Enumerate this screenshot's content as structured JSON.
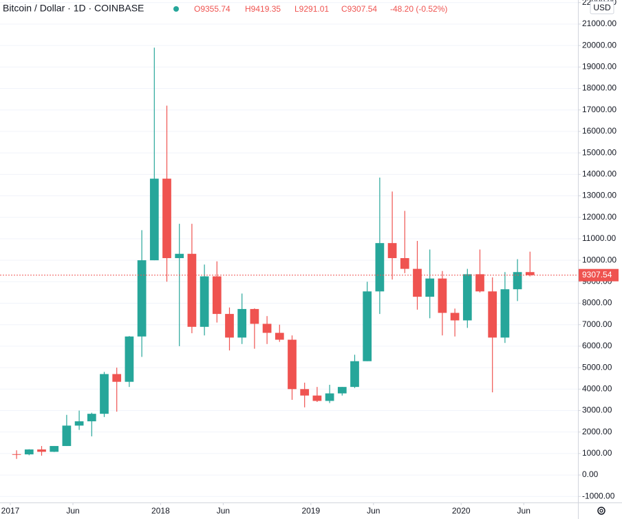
{
  "header": {
    "symbol": "Bitcoin / Dollar · 1D · COINBASE",
    "open": "O9355.74",
    "high": "H9419.35",
    "low": "L9291.01",
    "close": "C9307.54",
    "change": "-48.20 (-0.52%)",
    "currency": "USD"
  },
  "chart_data": {
    "type": "candlestick",
    "categories": [
      "2017",
      null,
      null,
      null,
      null,
      "Jun",
      null,
      null,
      null,
      null,
      null,
      null,
      "2018",
      null,
      null,
      null,
      null,
      "Jun",
      null,
      null,
      null,
      null,
      null,
      null,
      "2019",
      null,
      null,
      null,
      null,
      "Jun",
      null,
      null,
      null,
      null,
      null,
      null,
      "2020",
      null,
      null,
      null,
      null,
      "Jun"
    ],
    "open": [
      970,
      960,
      1190,
      1080,
      1350,
      2300,
      2500,
      2850,
      4700,
      4340,
      6450,
      10000,
      13800,
      10100,
      10300,
      6900,
      9250,
      7500,
      6400,
      7730,
      7040,
      6620,
      6300,
      4000,
      3700,
      3450,
      3800,
      4100,
      5300,
      8550,
      10800,
      10100,
      9600,
      8300,
      9150,
      7550,
      7200,
      9350,
      8550,
      6400,
      8650,
      9450
    ],
    "high": [
      1150,
      1200,
      1350,
      1350,
      2800,
      3000,
      2900,
      4800,
      5000,
      6470,
      11400,
      19900,
      17200,
      11700,
      11700,
      9800,
      9950,
      7800,
      8450,
      7760,
      7400,
      7000,
      6500,
      4300,
      4100,
      4200,
      4100,
      5600,
      9000,
      13850,
      13200,
      12300,
      10900,
      10500,
      9500,
      7750,
      9600,
      10500,
      9200,
      9450,
      10050,
      10400
    ],
    "low": [
      750,
      920,
      900,
      1070,
      1350,
      2100,
      1800,
      2700,
      2950,
      4100,
      5500,
      10000,
      9000,
      6000,
      6600,
      6500,
      7100,
      5800,
      6100,
      5880,
      6100,
      6200,
      3500,
      3150,
      3400,
      3350,
      3700,
      4050,
      5300,
      7500,
      9100,
      9400,
      7700,
      7300,
      6500,
      6450,
      6850,
      8500,
      3850,
      6150,
      8100,
      9250
    ],
    "close": [
      960,
      1190,
      1080,
      1350,
      2300,
      2500,
      2850,
      4700,
      4340,
      6450,
      10000,
      13800,
      10100,
      10300,
      6900,
      9250,
      7500,
      6400,
      7730,
      7040,
      6620,
      6300,
      4000,
      3700,
      3450,
      3800,
      4100,
      5300,
      8550,
      10800,
      10100,
      9600,
      8300,
      9150,
      7550,
      7200,
      9350,
      8550,
      6400,
      8650,
      9450,
      9307.54
    ],
    "up_color": "#26a69a",
    "down_color": "#ef5350",
    "last_price": 9307.54,
    "ylim": [
      -1280,
      22120
    ],
    "yticks": [
      {
        "value": -1000,
        "label": "-1000.00"
      },
      {
        "value": 0,
        "label": "0.00"
      },
      {
        "value": 1000,
        "label": "1000.00"
      },
      {
        "value": 2000,
        "label": "2000.00"
      },
      {
        "value": 3000,
        "label": "3000.00"
      },
      {
        "value": 4000,
        "label": "4000.00"
      },
      {
        "value": 5000,
        "label": "5000.00"
      },
      {
        "value": 6000,
        "label": "6000.00"
      },
      {
        "value": 7000,
        "label": "7000.00"
      },
      {
        "value": 8000,
        "label": "8000.00"
      },
      {
        "value": 9000,
        "label": "9000.00"
      },
      {
        "value": 10000,
        "label": "10000.00"
      },
      {
        "value": 11000,
        "label": "11000.00"
      },
      {
        "value": 12000,
        "label": "12000.00"
      },
      {
        "value": 13000,
        "label": "13000.00"
      },
      {
        "value": 14000,
        "label": "14000.00"
      },
      {
        "value": 15000,
        "label": "15000.00"
      },
      {
        "value": 16000,
        "label": "16000.00"
      },
      {
        "value": 17000,
        "label": "17000.00"
      },
      {
        "value": 18000,
        "label": "18000.00"
      },
      {
        "value": 19000,
        "label": "19000.00"
      },
      {
        "value": 20000,
        "label": "20000.00"
      },
      {
        "value": 21000,
        "label": "21000.00"
      },
      {
        "value": 22000,
        "label": "22000.00"
      }
    ],
    "grid": true
  }
}
